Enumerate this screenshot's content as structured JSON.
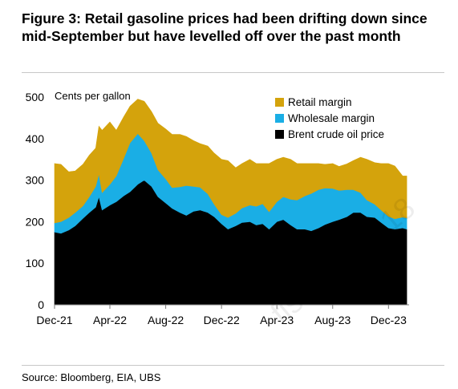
{
  "figure": {
    "title": "Figure 3: Retail gasoline prices had been drifting down since mid-September but have levelled off over the past month",
    "source": "Source: Bloomberg, EIA, UBS"
  },
  "chart_data": {
    "type": "area",
    "stacked": true,
    "ylabel": "Cents per gallon",
    "ylim": [
      0,
      500
    ],
    "yticks": [
      0,
      100,
      200,
      300,
      400,
      500
    ],
    "xlim": [
      "2021-12-01",
      "2024-01-15"
    ],
    "xticks": [
      {
        "label": "Dec-21",
        "date": "2021-12-01"
      },
      {
        "label": "Apr-22",
        "date": "2022-04-01"
      },
      {
        "label": "Aug-22",
        "date": "2022-08-01"
      },
      {
        "label": "Dec-22",
        "date": "2022-12-01"
      },
      {
        "label": "Apr-23",
        "date": "2023-04-01"
      },
      {
        "label": "Aug-23",
        "date": "2023-08-01"
      },
      {
        "label": "Dec-23",
        "date": "2023-12-01"
      }
    ],
    "legend_position": "top-right",
    "x": [
      "2021-12-01",
      "2021-12-15",
      "2022-01-01",
      "2022-01-15",
      "2022-02-01",
      "2022-02-15",
      "2022-03-01",
      "2022-03-08",
      "2022-03-15",
      "2022-04-01",
      "2022-04-15",
      "2022-05-01",
      "2022-05-15",
      "2022-06-01",
      "2022-06-15",
      "2022-07-01",
      "2022-07-15",
      "2022-08-01",
      "2022-08-15",
      "2022-09-01",
      "2022-09-15",
      "2022-10-01",
      "2022-10-15",
      "2022-11-01",
      "2022-11-15",
      "2022-12-01",
      "2022-12-15",
      "2023-01-01",
      "2023-01-15",
      "2023-02-01",
      "2023-02-15",
      "2023-03-01",
      "2023-03-15",
      "2023-04-01",
      "2023-04-15",
      "2023-05-01",
      "2023-05-15",
      "2023-06-01",
      "2023-06-15",
      "2023-07-01",
      "2023-07-15",
      "2023-08-01",
      "2023-08-15",
      "2023-09-01",
      "2023-09-15",
      "2023-10-01",
      "2023-10-15",
      "2023-11-01",
      "2023-11-15",
      "2023-12-01",
      "2023-12-15",
      "2024-01-01",
      "2024-01-10"
    ],
    "series": [
      {
        "name": "Brent crude oil price",
        "color": "#000000",
        "values": [
          175,
          172,
          180,
          190,
          208,
          222,
          235,
          260,
          228,
          240,
          248,
          262,
          272,
          290,
          300,
          285,
          260,
          245,
          232,
          222,
          215,
          225,
          228,
          222,
          212,
          195,
          182,
          190,
          198,
          200,
          192,
          195,
          182,
          200,
          205,
          192,
          182,
          182,
          178,
          185,
          193,
          200,
          205,
          212,
          222,
          222,
          212,
          210,
          198,
          185,
          182,
          185,
          182
        ]
      },
      {
        "name": "Wholesale margin",
        "values": [
          22,
          28,
          30,
          32,
          30,
          38,
          50,
          55,
          42,
          50,
          62,
          90,
          118,
          122,
          95,
          80,
          65,
          58,
          50,
          62,
          72,
          60,
          55,
          45,
          30,
          22,
          28,
          30,
          35,
          40,
          45,
          48,
          42,
          48,
          55,
          62,
          70,
          80,
          90,
          92,
          88,
          80,
          70,
          65,
          55,
          48,
          40,
          32,
          30,
          28,
          25,
          26,
          27
        ],
        "color": "#1aaee5"
      },
      {
        "name": "Retail margin",
        "values": [
          143,
          138,
          110,
          100,
          100,
          100,
          92,
          115,
          150,
          150,
          110,
          100,
          88,
          83,
          95,
          100,
          112,
          120,
          128,
          126,
          118,
          110,
          105,
          115,
          123,
          133,
          137,
          110,
          107,
          110,
          103,
          97,
          116,
          102,
          95,
          96,
          88,
          78,
          72,
          63,
          57,
          60,
          58,
          62,
          70,
          85,
          98,
          100,
          112,
          127,
          127,
          99,
          101
        ],
        "color": "#d4a30c"
      }
    ]
  },
  "watermark": "fisher.xi@ 18"
}
